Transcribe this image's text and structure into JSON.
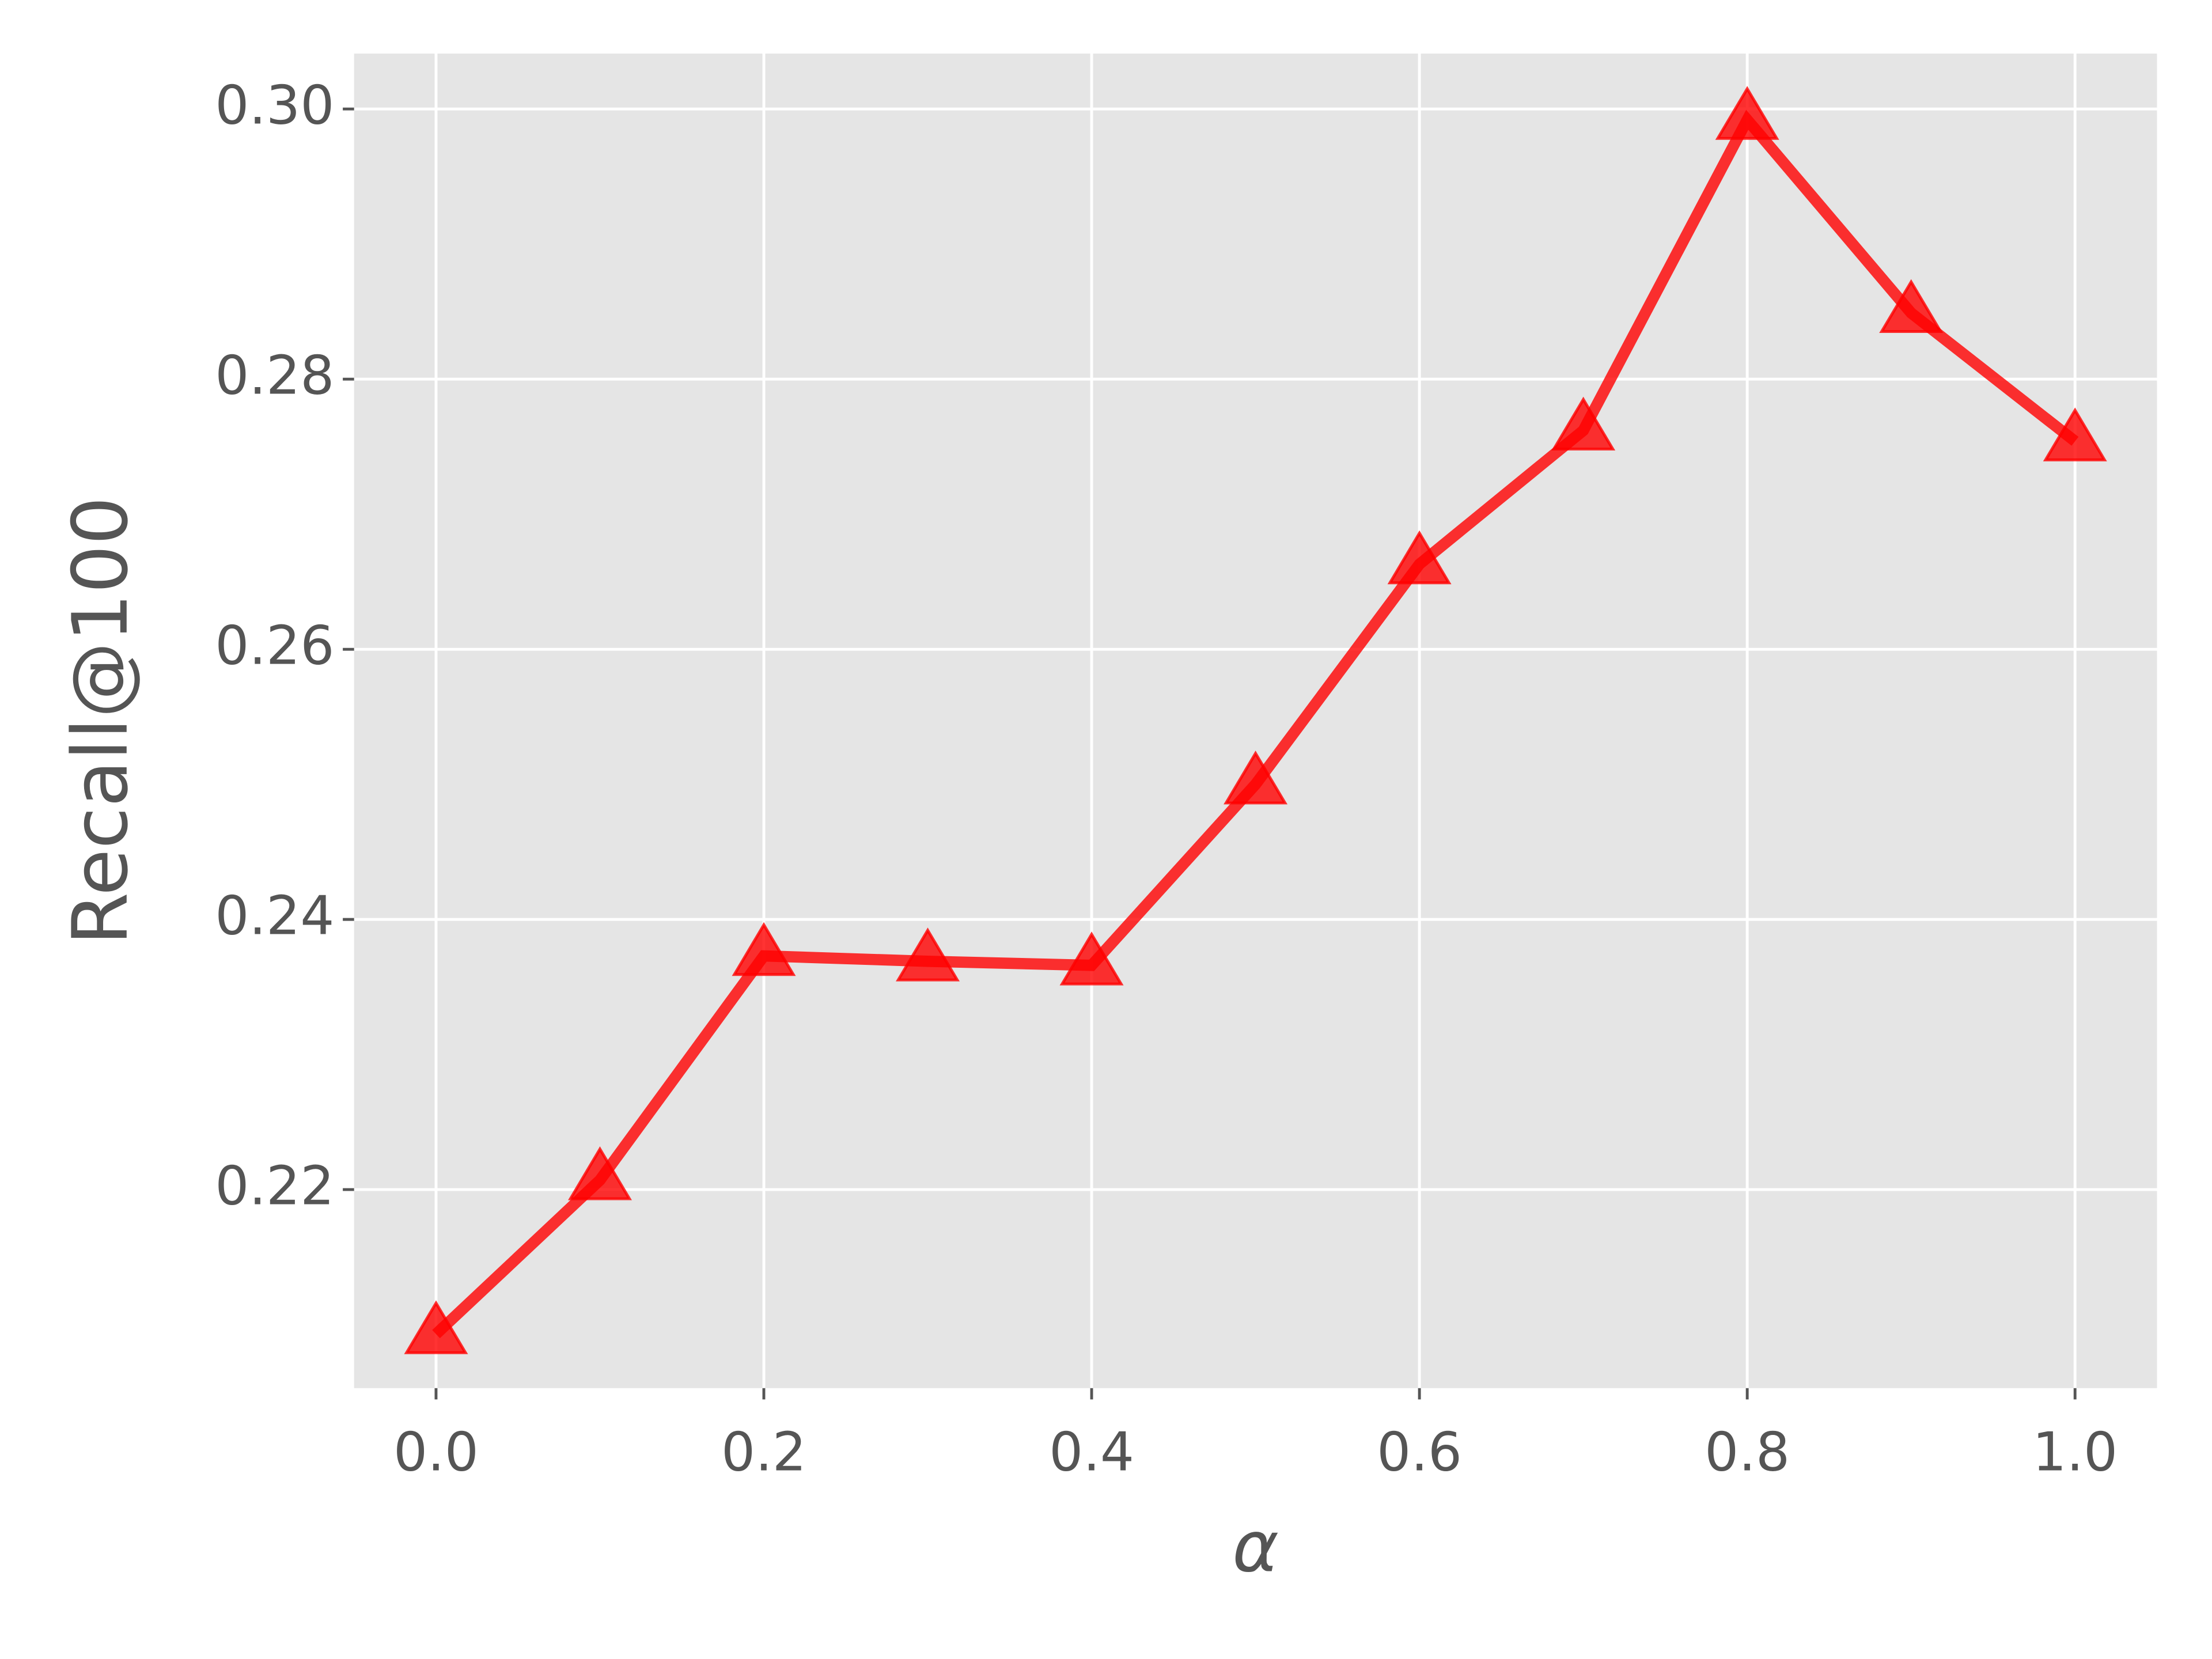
{
  "chart_data": {
    "type": "line",
    "x_label": "α",
    "y_label": "Recall@100",
    "x": [
      0.0,
      0.1,
      0.2,
      0.3,
      0.4,
      0.5,
      0.6,
      0.7,
      0.8,
      0.9,
      1.0
    ],
    "series": [
      {
        "color": "#ff0000",
        "marker": "triangle",
        "values": [
          0.2093,
          0.2207,
          0.2373,
          0.2369,
          0.2366,
          0.25,
          0.2663,
          0.2762,
          0.2992,
          0.2849,
          0.2754
        ]
      }
    ],
    "xlim": [
      -0.05,
      1.05
    ],
    "ylim": [
      0.2053,
      0.3041
    ],
    "xticks": [
      {
        "value": 0,
        "label": "0.0"
      },
      {
        "value": 0.2,
        "label": "0.2"
      },
      {
        "value": 0.4,
        "label": "0.4"
      },
      {
        "value": 0.6,
        "label": "0.6"
      },
      {
        "value": 0.8,
        "label": "0.8"
      },
      {
        "value": 1,
        "label": "1.0"
      }
    ],
    "yticks": [
      {
        "value": 0.22,
        "label": "0.22"
      },
      {
        "value": 0.24,
        "label": "0.24"
      },
      {
        "value": 0.26,
        "label": "0.26"
      },
      {
        "value": 0.28,
        "label": "0.28"
      },
      {
        "value": 0.3,
        "label": "0.30"
      }
    ],
    "grid": true
  }
}
